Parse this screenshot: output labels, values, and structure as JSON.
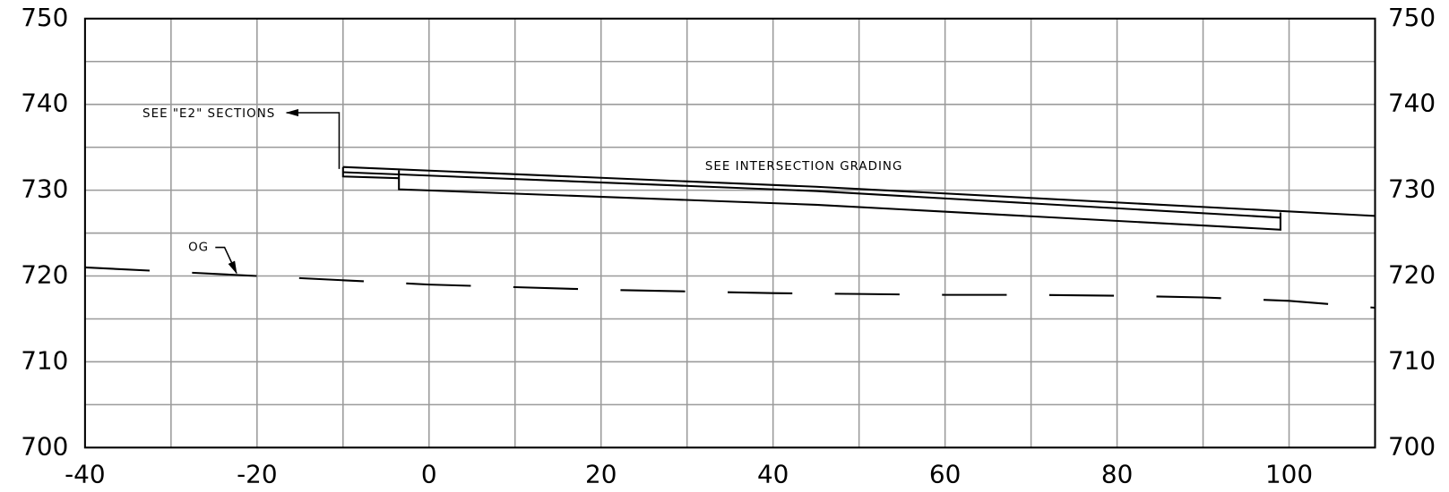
{
  "chart_data": {
    "type": "line",
    "xlim": [
      -40,
      110
    ],
    "ylim": [
      700,
      750
    ],
    "xticks": [
      -40,
      -20,
      0,
      20,
      40,
      60,
      80,
      100
    ],
    "yticks": [
      700,
      710,
      720,
      730,
      740,
      750
    ],
    "xgrid": [
      -40,
      -30,
      -20,
      -10,
      0,
      10,
      20,
      30,
      40,
      50,
      60,
      70,
      80,
      90,
      100,
      110
    ],
    "ygrid": [
      700,
      705,
      710,
      715,
      720,
      725,
      730,
      735,
      740,
      745,
      750
    ],
    "grid": true,
    "grid_color": "#9a9a9a",
    "right_axis_labels": true,
    "series": [
      {
        "name": "OG",
        "color": "#000000",
        "dashed": true,
        "x": [
          -40,
          -30,
          -20,
          -10,
          0,
          10,
          20,
          30,
          40,
          50,
          60,
          70,
          80,
          90,
          100,
          110
        ],
        "values": [
          721.0,
          720.5,
          720.0,
          719.5,
          719.0,
          718.7,
          718.4,
          718.2,
          718.0,
          717.9,
          717.8,
          717.8,
          717.7,
          717.5,
          717.1,
          716.3
        ]
      },
      {
        "color": "#000000",
        "dashed": false,
        "x": [
          -10,
          45,
          110
        ],
        "values": [
          732.7,
          730.4,
          727.0
        ]
      },
      {
        "color": "#000000",
        "dashed": false,
        "x": [
          -10,
          45,
          99
        ],
        "values": [
          732.1,
          729.9,
          726.8
        ]
      },
      {
        "color": "#000000",
        "dashed": false,
        "x": [
          -10,
          -10,
          -3.5
        ],
        "values": [
          732.7,
          731.6,
          731.4
        ]
      },
      {
        "color": "#000000",
        "dashed": false,
        "x": [
          -3.5,
          -3.5,
          45,
          99,
          99
        ],
        "values": [
          732.3,
          730.1,
          728.3,
          725.4,
          727.4
        ]
      }
    ],
    "annotations": [
      "SEE \"E2\" SECTIONS",
      "SEE INTERSECTION GRADING"
    ]
  }
}
